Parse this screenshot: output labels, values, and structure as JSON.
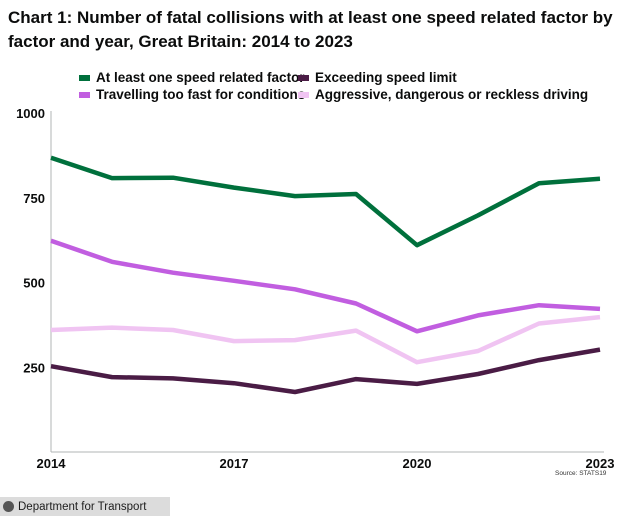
{
  "chart_data": {
    "type": "line",
    "title": "Chart 1: Number of fatal collisions with at least one speed related factor by factor and year, Great Britain: 2014 to 2023",
    "xlabel": "",
    "ylabel": "",
    "x": [
      2014,
      2015,
      2016,
      2017,
      2018,
      2019,
      2020,
      2021,
      2022,
      2023
    ],
    "x_tick_labels": [
      "2014",
      "2017",
      "2020",
      "2023"
    ],
    "x_ticks": [
      2014,
      2017,
      2020,
      2023
    ],
    "y_ticks": [
      250,
      500,
      750,
      1000
    ],
    "y_tick_labels": [
      "250",
      "500",
      "750",
      "1000"
    ],
    "ylim": [
      0,
      1000
    ],
    "grid": false,
    "legend_position": "top",
    "series": [
      {
        "name": "At least one speed related factor",
        "color": "#00703c",
        "values": [
          868,
          808,
          809,
          780,
          755,
          761,
          610,
          698,
          793,
          806
        ]
      },
      {
        "name": "Exceeding speed limit",
        "color": "#4a1c45",
        "values": [
          253,
          221,
          217,
          203,
          177,
          215,
          201,
          230,
          271,
          302
        ]
      },
      {
        "name": "Travelling too fast for conditions",
        "color": "#c15ee0",
        "values": [
          623,
          561,
          529,
          505,
          480,
          438,
          356,
          403,
          433,
          422
        ]
      },
      {
        "name": "Aggressive, dangerous or reckless driving",
        "color": "#f0c4f2",
        "values": [
          360,
          367,
          360,
          327,
          330,
          358,
          265,
          298,
          379,
          398
        ]
      }
    ]
  },
  "source": "Source: STATS19",
  "footer": {
    "label": "Department for Transport"
  }
}
